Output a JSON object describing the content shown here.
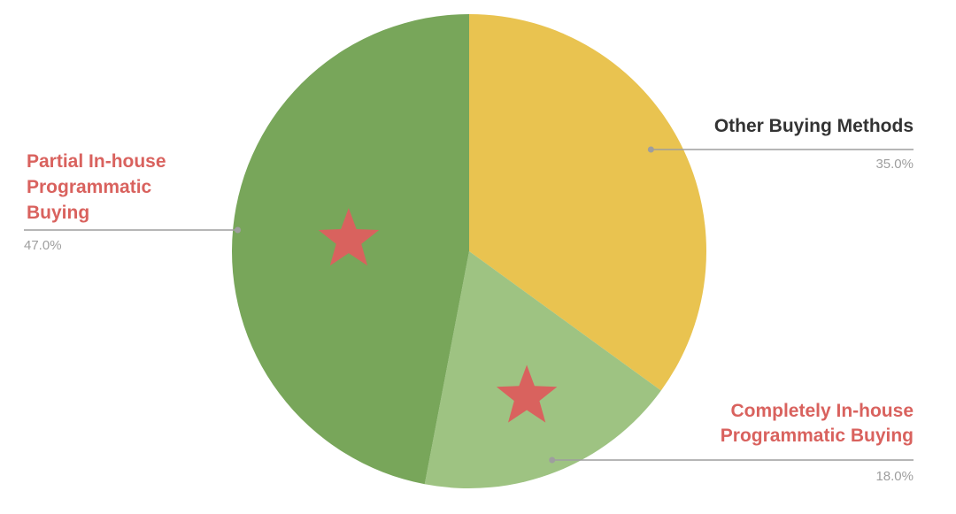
{
  "chart_data": {
    "type": "pie",
    "title": "",
    "start_angle_deg": 0,
    "direction": "clockwise",
    "slices": [
      {
        "name": "Other Buying Methods",
        "label_lines": [
          "Other Buying Methods"
        ],
        "value": 35.0,
        "value_label": "35.0%",
        "color": "#e9c350",
        "label_color": "#333333",
        "starred": false
      },
      {
        "name": "Completely In-house Programmatic Buying",
        "label_lines": [
          "Completely In-house",
          "Programmatic Buying"
        ],
        "value": 18.0,
        "value_label": "18.0%",
        "color": "#9ec382",
        "label_color": "#d9625e",
        "starred": true
      },
      {
        "name": "Partial In-house Programmatic Buying",
        "label_lines": [
          "Partial In-house",
          "Programmatic",
          "Buying"
        ],
        "value": 47.0,
        "value_label": "47.0%",
        "color": "#78a65a",
        "label_color": "#d9625e",
        "starred": true
      }
    ],
    "leader_line_color": "#9e9e9e",
    "star_color": "#d9625e"
  }
}
